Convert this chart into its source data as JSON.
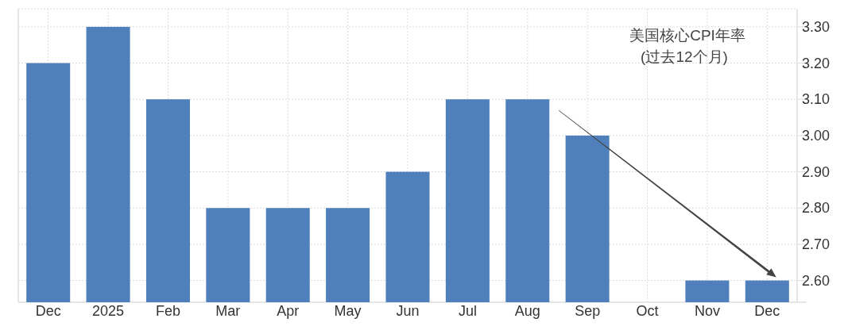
{
  "chart_data": {
    "type": "bar",
    "title": "美国核心CPI年率",
    "subtitle": "(过去12个月)",
    "categories": [
      "Dec",
      "2025",
      "Feb",
      "Mar",
      "Apr",
      "May",
      "Jun",
      "Jul",
      "Aug",
      "Sep",
      "Oct",
      "Nov",
      "Dec"
    ],
    "values": [
      3.2,
      3.3,
      3.1,
      2.8,
      2.8,
      2.8,
      2.9,
      3.1,
      3.1,
      3.0,
      null,
      2.6,
      2.6
    ],
    "color": "#4f80bb",
    "ylim": [
      2.54,
      3.35
    ],
    "yticks": [
      {
        "value": 2.6,
        "label": "2.60"
      },
      {
        "value": 2.7,
        "label": "2.70"
      },
      {
        "value": 2.8,
        "label": "2.80"
      },
      {
        "value": 2.9,
        "label": "2.90"
      },
      {
        "value": 3.0,
        "label": "3.00"
      },
      {
        "value": 3.1,
        "label": "3.10"
      },
      {
        "value": 3.2,
        "label": "3.20"
      },
      {
        "value": 3.3,
        "label": "3.30"
      }
    ],
    "grid": true
  }
}
